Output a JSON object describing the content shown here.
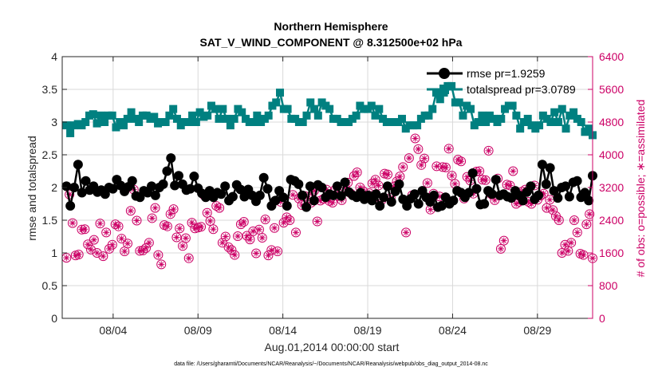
{
  "colors": {
    "rmse": "#000000",
    "totalspread": "#008080",
    "obs": "#cc0066",
    "axis": "#262626",
    "grid": "#d9d9d9"
  },
  "chart_data": {
    "type": "line",
    "title_line1": "Northern Hemisphere",
    "title_line2": "SAT_V_WIND_COMPONENT @ 8.312500e+02 hPa",
    "xlabel": "Aug.01,2014 00:00:00 start",
    "ylabel_left": "rmse and totalspread",
    "ylabel_right": "# of obs: o=possible; ∗=assimilated",
    "footnote": "data file: /Users/gharamti/Documents/NCAR/Reanalysis/~/Documents/NCAR/Reanalysis/webpub/obs_diag_output_2014-08.nc",
    "xlim": [
      1,
      32.25
    ],
    "ylim_left": [
      0,
      4
    ],
    "ylim_right": [
      0,
      6400
    ],
    "x_ticks": [
      4,
      9,
      14,
      19,
      24,
      29
    ],
    "x_tick_labels": [
      "08/04",
      "08/09",
      "08/14",
      "08/19",
      "08/24",
      "08/29"
    ],
    "y_ticks_left": [
      0,
      0.5,
      1,
      1.5,
      2,
      2.5,
      3,
      3.5,
      4
    ],
    "y_tick_labels_left": [
      "0",
      "0.5",
      "1",
      "1.5",
      "2",
      "2.5",
      "3",
      "3.5",
      "4"
    ],
    "y_ticks_right": [
      0,
      800,
      1600,
      2400,
      3200,
      4000,
      4800,
      5600,
      6400
    ],
    "y_tick_labels_right": [
      "0",
      "800",
      "1600",
      "2400",
      "3200",
      "4000",
      "4800",
      "5600",
      "6400"
    ],
    "legend_location": "top-right",
    "series": [
      {
        "name": "rmse pr=1.9259",
        "values": [
          2.02,
          1.72,
          2.0,
          2.35,
          1.92,
          2.1,
          1.96,
          2.02,
          1.93,
          1.96,
          1.9,
          2.0,
          1.98,
          2.12,
          2.03,
          1.94,
          2.01,
          2.1,
          1.87,
          1.85,
          1.95,
          1.92,
          2.02,
          1.88,
          2.0,
          2.05,
          2.25,
          2.45,
          2.03,
          2.18,
          2.05,
          1.96,
          1.98,
          2.17,
          1.99,
          1.91,
          1.85,
          1.95,
          1.85,
          1.92,
          1.9,
          2.02,
          1.8,
          1.86,
          2.04,
          1.97,
          1.86,
          1.97,
          1.88,
          1.79,
          1.88,
          2.15,
          1.98,
          1.72,
          1.8,
          1.95,
          1.85,
          1.72,
          2.12,
          2.1,
          2.05,
          1.88,
          1.7,
          2.02,
          1.8,
          2.04,
          2.0,
          1.85,
          1.9,
          1.88,
          2.02,
          1.87,
          2.08,
          1.93,
          1.88,
          1.85,
          1.92,
          1.82,
          1.88,
          1.8,
          1.9,
          1.72,
          1.85,
          2.02,
          1.78,
          1.94,
          2.05,
          1.82,
          1.72,
          1.83,
          1.9,
          1.75,
          1.95,
          1.85,
          1.78,
          1.88,
          1.7,
          1.72,
          1.85,
          1.75,
          1.8,
          1.95,
          1.92,
          1.85,
          1.92,
          2.22,
          1.98,
          1.74,
          1.75,
          1.95,
          1.9,
          2.12,
          1.88,
          1.9,
          1.86,
          1.84,
          1.95,
          1.88,
          1.8,
          1.93,
          2.02,
          1.82,
          1.88,
          2.35,
          2.05,
          2.3,
          1.95,
          1.84,
          2.0,
          2.02,
          1.86,
          2.08,
          2.1,
          1.85,
          1.92,
          1.8,
          2.18
        ]
      },
      {
        "name": "totalspread pr=3.0789",
        "values": [
          2.95,
          2.83,
          2.95,
          2.97,
          2.95,
          3.0,
          3.1,
          3.12,
          2.98,
          3.1,
          3.0,
          3.1,
          3.1,
          2.92,
          3.0,
          2.95,
          3.05,
          3.15,
          3.05,
          3.0,
          3.1,
          3.1,
          3.05,
          3.08,
          2.98,
          3.0,
          3.0,
          3.1,
          3.2,
          3.05,
          2.95,
          3.0,
          3.0,
          3.1,
          3.0,
          3.15,
          3.08,
          3.1,
          3.25,
          3.2,
          3.05,
          3.2,
          3.05,
          2.95,
          3.05,
          3.2,
          3.15,
          3.05,
          3.0,
          3.0,
          3.1,
          3.0,
          3.05,
          3.1,
          3.25,
          3.3,
          3.45,
          3.2,
          3.2,
          3.05,
          3.05,
          3.0,
          3.0,
          3.1,
          3.3,
          3.2,
          3.1,
          3.3,
          3.25,
          3.2,
          3.05,
          3.05,
          3.0,
          3.0,
          3.0,
          3.05,
          3.1,
          3.25,
          3.2,
          3.2,
          3.25,
          3.1,
          3.2,
          3.05,
          3.0,
          3.0,
          3.0,
          3.0,
          3.05,
          2.9,
          2.95,
          2.95,
          2.95,
          3.05,
          3.1,
          3.1,
          3.2,
          3.45,
          3.35,
          3.45,
          3.55,
          3.55,
          3.3,
          3.3,
          3.1,
          3.25,
          3.2,
          2.95,
          3.0,
          3.1,
          3.0,
          3.1,
          3.05,
          3.0,
          3.05,
          3.2,
          3.25,
          3.25,
          3.1,
          2.9,
          3.0,
          3.05,
          2.95,
          2.9,
          2.95,
          3.1,
          3.05,
          3.0,
          3.15,
          3.0,
          3.2,
          2.9,
          3.1,
          3.15,
          3.05,
          3.0,
          2.85,
          2.9,
          2.8
        ]
      }
    ],
    "obs_possible": [
      1480,
      3030,
      2330,
      1540,
      1560,
      2170,
      2180,
      1810,
      1680,
      1920,
      1600,
      2320,
      1520,
      2100,
      1700,
      1800,
      2300,
      2250,
      1950,
      1640,
      1830,
      2630,
      3150,
      2390,
      1650,
      1660,
      1720,
      1850,
      2450,
      2700,
      1550,
      1320,
      2280,
      2250,
      2550,
      2670,
      1980,
      2200,
      1770,
      1960,
      1470,
      2340,
      2200,
      2220,
      2240,
      3010,
      2580,
      2380,
      2180,
      2750,
      2700,
      1850,
      2000,
      1740,
      1670,
      1550,
      2010,
      2300,
      2360,
      2020,
      1930,
      2130,
      1590,
      2170,
      1970,
      2420,
      1540,
      1670,
      2210,
      1640,
      2850,
      2340,
      2470,
      2400,
      3020,
      2100,
      2930,
      2770,
      2990,
      2940,
      2830,
      3120,
      2370,
      2880,
      2920,
      3150,
      2870,
      2830,
      3160,
      2990,
      2890,
      3200,
      3320,
      3050,
      3480,
      3570,
      3200,
      3110,
      2970,
      3060,
      3300,
      3390,
      3250,
      2890,
      3540,
      3520,
      2950,
      3220,
      3350,
      3470,
      3700,
      2100,
      3920,
      3010,
      4400,
      4140,
      3750,
      3910,
      3310,
      2660,
      3050,
      3720,
      2980,
      3700,
      3690,
      4150,
      3490,
      3290,
      3880,
      3840,
      2930,
      3460,
      3370,
      3050,
      3590,
      3600,
      3390,
      3380,
      4100,
      3030,
      2890,
      3420,
      1700,
      1900,
      3270,
      3250,
      3600,
      2800,
      2850,
      3100,
      3150,
      2850,
      2800,
      3250,
      2900,
      3000,
      3050,
      2700,
      2900,
      2650,
      2500,
      2400,
      1600,
      1800,
      1650,
      1850,
      2400,
      2100,
      1580,
      1550,
      2300,
      2550,
      1470
    ]
  }
}
